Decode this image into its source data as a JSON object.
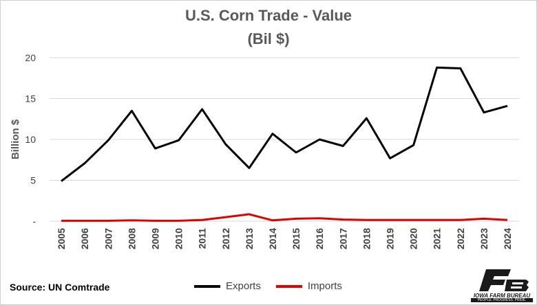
{
  "chart_data": {
    "type": "line",
    "title": "U.S. Corn Trade - Value",
    "subtitle": "(Bil $)",
    "ylabel": "Billion $",
    "xlabel": "",
    "ylim": [
      0,
      20
    ],
    "yticks": [
      0,
      5,
      10,
      15,
      20
    ],
    "ytick_labels": [
      "-",
      "5",
      "10",
      "15",
      "20"
    ],
    "categories": [
      "2005",
      "2006",
      "2007",
      "2008",
      "2009",
      "2010",
      "2011",
      "2012",
      "2013",
      "2014",
      "2015",
      "2016",
      "2017",
      "2018",
      "2019",
      "2020",
      "2021",
      "2022",
      "2023",
      "2024"
    ],
    "series": [
      {
        "name": "Exports",
        "color": "#000000",
        "values": [
          4.9,
          7.1,
          9.9,
          13.5,
          8.9,
          9.9,
          13.7,
          9.4,
          6.5,
          10.7,
          8.4,
          10.0,
          9.2,
          12.6,
          7.7,
          9.3,
          18.8,
          18.7,
          13.3,
          14.1
        ]
      },
      {
        "name": "Imports",
        "color": "#e00000",
        "values": [
          0.05,
          0.05,
          0.05,
          0.1,
          0.05,
          0.05,
          0.15,
          0.5,
          0.85,
          0.1,
          0.3,
          0.35,
          0.2,
          0.15,
          0.15,
          0.15,
          0.15,
          0.15,
          0.3,
          0.15
        ]
      }
    ],
    "grid": true,
    "legend_position": "bottom"
  },
  "source": "Source: UN Comtrade",
  "logo": {
    "text": "IOWA FARM BUREAU",
    "tagline": "PEOPLE. PROGRESS. PRIDE."
  }
}
